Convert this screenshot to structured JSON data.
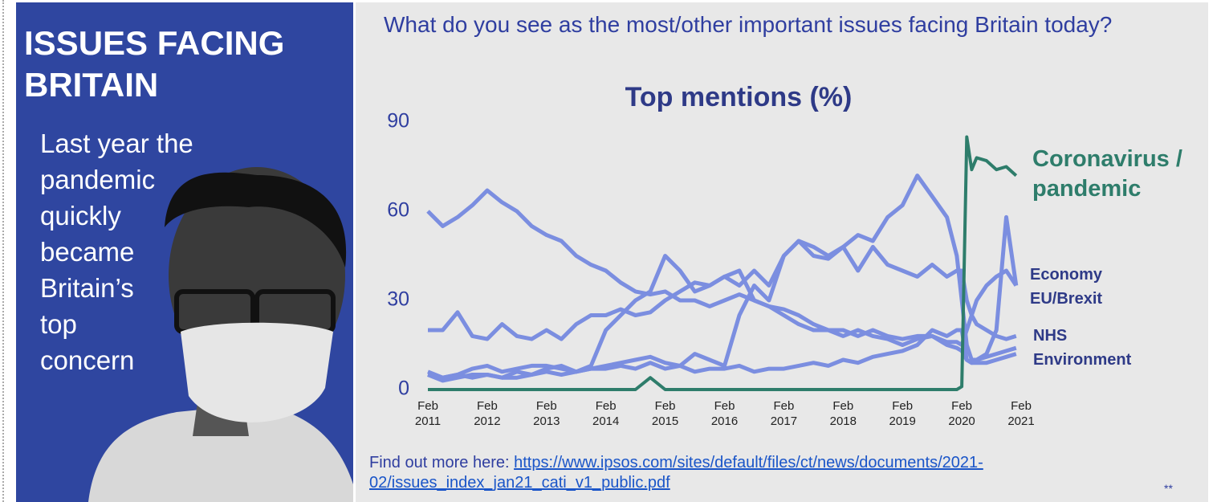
{
  "panel": {
    "title": "ISSUES FACING BRITAIN",
    "text_lines": [
      "Last year the",
      "pandemic",
      "quickly",
      "became",
      "Britain’s",
      "top",
      "concern"
    ]
  },
  "question": "What do you see as the most/other important issues facing Britain today?",
  "chart_data": {
    "type": "line",
    "title": "Top mentions (%)",
    "x": [
      "2011-02",
      "2011-05",
      "2011-08",
      "2011-11",
      "2012-02",
      "2012-05",
      "2012-08",
      "2012-11",
      "2013-02",
      "2013-05",
      "2013-08",
      "2013-11",
      "2014-02",
      "2014-05",
      "2014-08",
      "2014-11",
      "2015-02",
      "2015-05",
      "2015-08",
      "2015-11",
      "2016-02",
      "2016-05",
      "2016-08",
      "2016-11",
      "2017-02",
      "2017-05",
      "2017-08",
      "2017-11",
      "2018-02",
      "2018-05",
      "2018-08",
      "2018-11",
      "2019-02",
      "2019-05",
      "2019-08",
      "2019-11",
      "2020-01",
      "2020-02",
      "2020-03",
      "2020-04",
      "2020-05",
      "2020-07",
      "2020-09",
      "2020-11",
      "2021-01"
    ],
    "xlim": [
      "2011-02",
      "2021-02"
    ],
    "xticks": [
      {
        "value": "2011-02",
        "label": "Feb 2011"
      },
      {
        "value": "2012-02",
        "label": "Feb 2012"
      },
      {
        "value": "2013-02",
        "label": "Feb 2013"
      },
      {
        "value": "2014-02",
        "label": "Feb 2014"
      },
      {
        "value": "2015-02",
        "label": "Feb 2015"
      },
      {
        "value": "2016-02",
        "label": "Feb 2016"
      },
      {
        "value": "2017-02",
        "label": "Feb 2017"
      },
      {
        "value": "2018-02",
        "label": "Feb 2018"
      },
      {
        "value": "2019-02",
        "label": "Feb 2019"
      },
      {
        "value": "2020-02",
        "label": "Feb 2020"
      },
      {
        "value": "2021-02",
        "label": "Feb 2021"
      }
    ],
    "ylim": [
      0,
      90
    ],
    "yticks": [
      0,
      30,
      60,
      90
    ],
    "grid": false,
    "series": [
      {
        "name": "Economy",
        "color": "#7b8ee0",
        "values": [
          60,
          55,
          58,
          62,
          67,
          63,
          60,
          55,
          52,
          50,
          45,
          42,
          40,
          36,
          33,
          32,
          33,
          30,
          30,
          28,
          30,
          32,
          30,
          28,
          27,
          25,
          22,
          20,
          20,
          18,
          20,
          18,
          17,
          18,
          18,
          16,
          16,
          15,
          20,
          25,
          30,
          35,
          38,
          40,
          35
        ]
      },
      {
        "name": "EU/Brexit",
        "color": "#7b8ee0",
        "values": [
          5,
          3,
          4,
          5,
          5,
          4,
          6,
          5,
          7,
          8,
          6,
          7,
          8,
          9,
          10,
          11,
          9,
          8,
          12,
          10,
          8,
          25,
          35,
          30,
          45,
          50,
          48,
          45,
          48,
          52,
          50,
          58,
          62,
          72,
          65,
          58,
          45,
          30,
          15,
          10,
          10,
          12,
          20,
          58,
          35
        ]
      },
      {
        "name": "NHS",
        "color": "#7b8ee0",
        "values": [
          20,
          20,
          26,
          18,
          17,
          22,
          18,
          17,
          20,
          17,
          22,
          25,
          25,
          27,
          25,
          26,
          30,
          33,
          36,
          35,
          38,
          35,
          40,
          35,
          45,
          50,
          45,
          44,
          48,
          40,
          48,
          42,
          40,
          38,
          42,
          38,
          40,
          40,
          30,
          25,
          22,
          20,
          18,
          17,
          18
        ]
      },
      {
        "name": "Environment",
        "color": "#7b8ee0",
        "values": [
          6,
          4,
          5,
          4,
          5,
          4,
          4,
          5,
          6,
          5,
          6,
          7,
          7,
          8,
          7,
          9,
          7,
          8,
          6,
          7,
          7,
          8,
          6,
          7,
          7,
          8,
          9,
          8,
          10,
          9,
          11,
          12,
          13,
          15,
          20,
          18,
          20,
          20,
          10,
          9,
          10,
          11,
          12,
          13,
          14
        ]
      },
      {
        "color": "#7b8ee0",
        "values": [
          5,
          4,
          5,
          7,
          8,
          6,
          7,
          8,
          8,
          7,
          6,
          8,
          20,
          25,
          30,
          33,
          45,
          40,
          33,
          35,
          38,
          40,
          30,
          28,
          25,
          22,
          20,
          20,
          18,
          20,
          18,
          17,
          15,
          17,
          18,
          15,
          14,
          13,
          10,
          9,
          9,
          9,
          10,
          11,
          12
        ]
      },
      {
        "name": "Coronavirus / pandemic",
        "color": "#2e7d6b",
        "values": [
          0,
          0,
          0,
          0,
          0,
          0,
          0,
          0,
          0,
          0,
          0,
          0,
          0,
          0,
          0,
          4,
          0,
          0,
          0,
          0,
          0,
          0,
          0,
          0,
          0,
          0,
          0,
          0,
          0,
          0,
          0,
          0,
          0,
          0,
          0,
          0,
          0,
          1,
          85,
          74,
          78,
          77,
          74,
          75,
          72
        ]
      }
    ]
  },
  "footer": {
    "prefix": "Find out more here:",
    "link": "https://www.ipsos.com/sites/default/files/ct/news/documents/2021-02/issues_index_jan21_cati_v1_public.pdf"
  },
  "note": "**"
}
